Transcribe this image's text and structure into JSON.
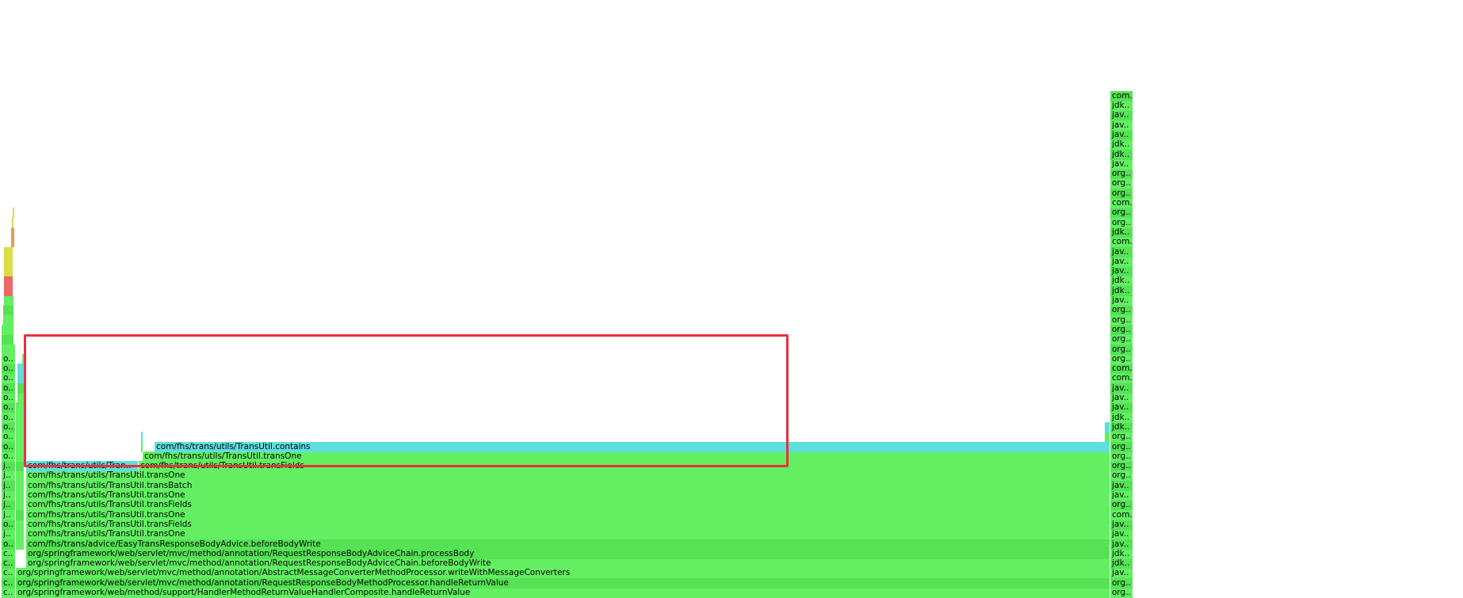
{
  "colors": {
    "java": "#62f062",
    "java_alt": "#55e355",
    "inlined": "#5fdede",
    "native_yellow": "#dcdc48",
    "native_orange": "#e89a55",
    "kernel_red": "#ee6666",
    "highlight": "#e8313f"
  },
  "frames": [
    {
      "label": "org/springframework/web/method/support/HandlerMethodReturnValueHandlerComposite.handleReturnValue"
    },
    {
      "label": "org/springframework/web/servlet/mvc/method/annotation/RequestResponseBodyMethodProcessor.handleReturnValue"
    },
    {
      "label": "org/springframework/web/servlet/mvc/method/annotation/AbstractMessageConverterMethodProcessor.writeWithMessageConverters"
    },
    {
      "label": "org/springframework/web/servlet/mvc/method/annotation/RequestResponseBodyAdviceChain.beforeBodyWrite"
    },
    {
      "label": "org/springframework/web/servlet/mvc/method/annotation/RequestResponseBodyAdviceChain.processBody"
    },
    {
      "label": "com/fhs/trans/advice/EasyTransResponseBodyAdvice.beforeBodyWrite"
    },
    {
      "label": "com/fhs/trans/utils/TransUtil.transOne"
    },
    {
      "label": "com/fhs/trans/utils/TransUtil.transFields"
    },
    {
      "label": "com/fhs/trans/utils/TransUtil.transOne"
    },
    {
      "label": "com/fhs/trans/utils/TransUtil.transFields"
    },
    {
      "label": "com/fhs/trans/utils/TransUtil.transOne"
    },
    {
      "label": "com/fhs/trans/utils/TransUtil.transBatch"
    },
    {
      "label": "com/fhs/trans/utils/TransUtil.transOne"
    },
    {
      "label": "com/fhs/trans/utils/Tran.."
    },
    {
      "label": "com/fhs/trans/utils/TransUtil.transFields"
    },
    {
      "label": "com/fhs/trans/utils/TransUtil.transOne"
    },
    {
      "label": "com/fhs/trans/utils/TransUtil.contains"
    },
    {
      "label": "c.."
    },
    {
      "label": "c.."
    },
    {
      "label": "c.."
    },
    {
      "label": "c.."
    },
    {
      "label": "c.."
    },
    {
      "label": "o.."
    },
    {
      "label": "j.."
    },
    {
      "label": "o.."
    },
    {
      "label": "j.."
    },
    {
      "label": "j.."
    },
    {
      "label": "j.."
    },
    {
      "label": "j.."
    },
    {
      "label": "j.."
    },
    {
      "label": "j.."
    },
    {
      "label": "o.."
    },
    {
      "label": "o.."
    },
    {
      "label": "o.."
    },
    {
      "label": "o.."
    },
    {
      "label": "o.."
    },
    {
      "label": "o.."
    },
    {
      "label": "o.."
    },
    {
      "label": "o.."
    },
    {
      "label": "o.."
    },
    {
      "label": "o.."
    },
    {
      "label": "o.."
    },
    {
      "label": "org.."
    },
    {
      "label": "org.."
    },
    {
      "label": "jav.."
    },
    {
      "label": "jdk.."
    },
    {
      "label": "jdk.."
    },
    {
      "label": "jav.."
    },
    {
      "label": "jav.."
    },
    {
      "label": "jav.."
    },
    {
      "label": "com.."
    },
    {
      "label": "org.."
    },
    {
      "label": "jav.."
    },
    {
      "label": "jav.."
    },
    {
      "label": "org.."
    },
    {
      "label": "org.."
    },
    {
      "label": "org.."
    },
    {
      "label": "org.."
    },
    {
      "label": "org.."
    },
    {
      "label": "jdk.."
    },
    {
      "label": "jdk.."
    },
    {
      "label": "jav.."
    },
    {
      "label": "jav.."
    },
    {
      "label": "jav.."
    },
    {
      "label": "com.."
    },
    {
      "label": "com.."
    },
    {
      "label": "org.."
    },
    {
      "label": "org.."
    },
    {
      "label": "org.."
    },
    {
      "label": "org.."
    },
    {
      "label": "org.."
    },
    {
      "label": "org.."
    },
    {
      "label": "jav.."
    },
    {
      "label": "jdk.."
    },
    {
      "label": "jdk.."
    },
    {
      "label": "jav.."
    },
    {
      "label": "jav.."
    },
    {
      "label": "jav.."
    },
    {
      "label": "com.."
    },
    {
      "label": "jdk.."
    },
    {
      "label": "org.."
    },
    {
      "label": "org.."
    },
    {
      "label": "com.."
    },
    {
      "label": "org.."
    },
    {
      "label": "org.."
    },
    {
      "label": "org.."
    },
    {
      "label": "jav.."
    },
    {
      "label": "jdk.."
    },
    {
      "label": "jdk.."
    },
    {
      "label": "jav.."
    },
    {
      "label": "jav.."
    },
    {
      "label": "jav.."
    },
    {
      "label": "jdk.."
    },
    {
      "label": "com.."
    },
    {
      "label": "com.."
    },
    {
      "label": "com.."
    },
    {
      "label": ""
    }
  ]
}
